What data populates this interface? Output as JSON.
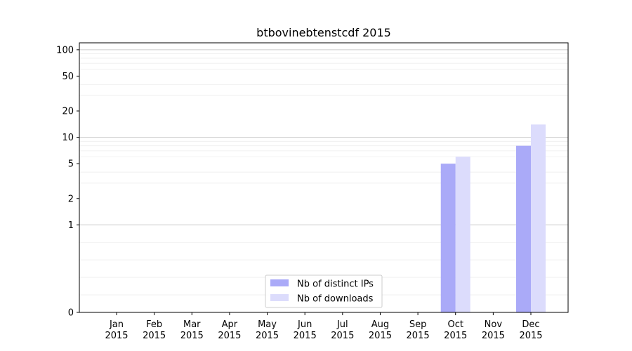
{
  "chart_data": {
    "type": "bar",
    "title": "btbovinebtenstcdf 2015",
    "xlabel": "",
    "ylabel": "",
    "y_scale": "symlog",
    "ylim": [
      0,
      120
    ],
    "y_ticks": [
      0,
      1,
      2,
      5,
      10,
      20,
      50,
      100
    ],
    "y_tick_labels": [
      "0",
      "1",
      "2",
      "5",
      "10",
      "20",
      "50",
      "100"
    ],
    "categories": [
      "Jan\n2015",
      "Feb\n2015",
      "Mar\n2015",
      "Apr\n2015",
      "May\n2015",
      "Jun\n2015",
      "Jul\n2015",
      "Aug\n2015",
      "Sep\n2015",
      "Oct\n2015",
      "Nov\n2015",
      "Dec\n2015"
    ],
    "series": [
      {
        "name": "Nb of distinct IPs",
        "color": "#aaaaf8",
        "values": [
          0,
          0,
          0,
          0,
          0,
          0,
          0,
          0,
          0,
          5,
          0,
          8
        ]
      },
      {
        "name": "Nb of downloads",
        "color": "#dcdcfc",
        "values": [
          0,
          0,
          0,
          0,
          0,
          0,
          0,
          0,
          0,
          6,
          0,
          14
        ]
      }
    ],
    "grid": true,
    "legend_position": "bottom-center"
  }
}
